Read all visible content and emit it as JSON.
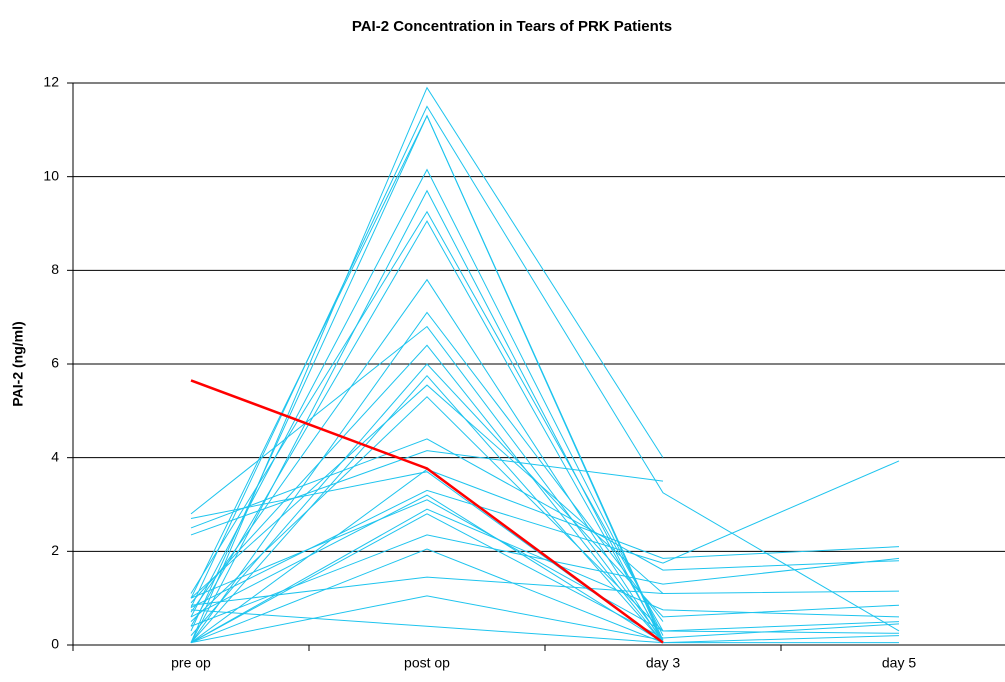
{
  "chart_data": {
    "type": "line",
    "title": "PAI-2 Concentration in Tears of PRK Patients",
    "y_label": "PAI-2 (ng/ml)",
    "categories": [
      "pre op",
      "post op",
      "day 3",
      "day 5"
    ],
    "ylim": [
      0,
      12
    ],
    "yticks": [
      0,
      2,
      4,
      6,
      8,
      10,
      12
    ],
    "grid": true,
    "series": [
      {
        "color": "#1ec4ee",
        "values": [
          0.05,
          11.9,
          4.0,
          null
        ]
      },
      {
        "color": "#1ec4ee",
        "values": [
          0.8,
          11.5,
          3.25,
          0.3
        ]
      },
      {
        "color": "#1ec4ee",
        "values": [
          1.0,
          11.3,
          0.05,
          null
        ]
      },
      {
        "color": "#1ec4ee",
        "values": [
          0.3,
          11.3,
          0.1,
          null
        ]
      },
      {
        "color": "#1ec4ee",
        "values": [
          0.6,
          10.15,
          0.2,
          null
        ]
      },
      {
        "color": "#1ec4ee",
        "values": [
          0.05,
          9.7,
          0.05,
          null
        ]
      },
      {
        "color": "#1ec4ee",
        "values": [
          1.1,
          9.25,
          0.3,
          0.5
        ]
      },
      {
        "color": "#1ec4ee",
        "values": [
          0.4,
          9.05,
          0.1,
          null
        ]
      },
      {
        "color": "#1ec4ee",
        "values": [
          0.7,
          7.8,
          0.05,
          null
        ]
      },
      {
        "color": "#1ec4ee",
        "values": [
          0.05,
          7.1,
          0.5,
          null
        ]
      },
      {
        "color": "#1ec4ee",
        "values": [
          2.8,
          6.8,
          0.1,
          null
        ]
      },
      {
        "color": "#1ec4ee",
        "values": [
          0.9,
          6.4,
          0.05,
          null
        ]
      },
      {
        "color": "#1ec4ee",
        "values": [
          0.2,
          6.0,
          0.6,
          0.85
        ]
      },
      {
        "color": "#1ec4ee",
        "values": [
          0.05,
          5.75,
          0.05,
          null
        ]
      },
      {
        "color": "#1ec4ee",
        "values": [
          1.0,
          5.55,
          1.1,
          1.15
        ]
      },
      {
        "color": "#1ec4ee",
        "values": [
          0.5,
          5.3,
          0.3,
          null
        ]
      },
      {
        "color": "#1ec4ee",
        "values": [
          2.5,
          4.4,
          1.6,
          1.8
        ]
      },
      {
        "color": "#1ec4ee",
        "values": [
          2.35,
          4.15,
          3.5,
          null
        ]
      },
      {
        "color": "#1ec4ee",
        "values": [
          0.05,
          3.75,
          1.85,
          2.1
        ]
      },
      {
        "color": "#1ec4ee",
        "values": [
          2.7,
          3.7,
          0.05,
          null
        ]
      },
      {
        "color": "#1ec4ee",
        "values": [
          0.8,
          3.3,
          1.75,
          3.93
        ]
      },
      {
        "color": "#1ec4ee",
        "values": [
          0.6,
          3.2,
          0.05,
          0.2
        ]
      },
      {
        "color": "#1ec4ee",
        "values": [
          1.0,
          3.1,
          0.3,
          0.25
        ]
      },
      {
        "color": "#1ec4ee",
        "values": [
          0.05,
          2.9,
          0.75,
          0.6
        ]
      },
      {
        "color": "#1ec4ee",
        "values": [
          0.05,
          2.8,
          0.15,
          0.45
        ]
      },
      {
        "color": "#1ec4ee",
        "values": [
          0.4,
          2.35,
          1.3,
          1.85
        ]
      },
      {
        "color": "#1ec4ee",
        "values": [
          0.05,
          2.05,
          0.05,
          0.05
        ]
      },
      {
        "color": "#1ec4ee",
        "values": [
          0.85,
          1.45,
          1.1,
          null
        ]
      },
      {
        "color": "#1ec4ee",
        "values": [
          0.05,
          1.05,
          0.1,
          null
        ]
      },
      {
        "color": "#1ec4ee",
        "values": [
          0.75,
          0.4,
          0.05,
          null
        ]
      },
      {
        "color": "#ff0000",
        "values": [
          5.65,
          3.77,
          0.05,
          null
        ],
        "width": 2.5
      }
    ]
  }
}
